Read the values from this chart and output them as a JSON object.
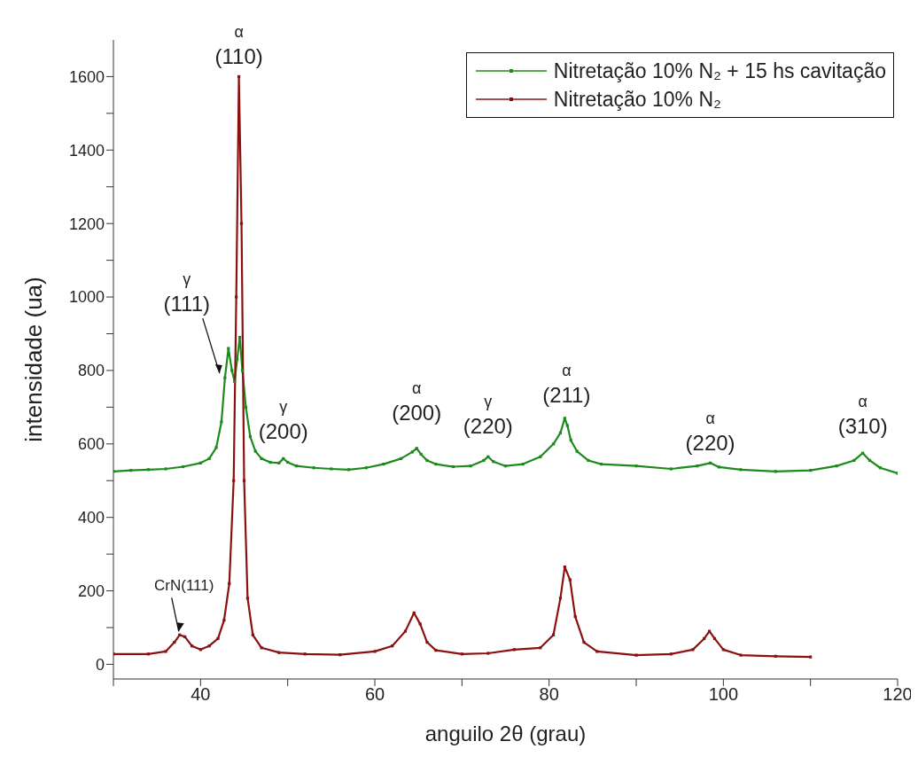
{
  "chart_data": {
    "type": "line",
    "xlabel": "anguilo 2θ (grau)",
    "ylabel": "intensidade (ua)",
    "xlim": [
      30,
      120
    ],
    "xticks": [
      {
        "value": 30,
        "label": null
      },
      40,
      {
        "value": 50,
        "label": null
      },
      60,
      {
        "value": 70,
        "label": null
      },
      80,
      {
        "value": 90,
        "label": null
      },
      100,
      {
        "value": 110,
        "label": null
      },
      120
    ],
    "ylim": [
      -40,
      1700
    ],
    "yticks": [
      0,
      {
        "value": 100,
        "label": null
      },
      200,
      {
        "value": 300,
        "label": null
      },
      400,
      {
        "value": 500,
        "label": null
      },
      600,
      {
        "value": 700,
        "label": null
      },
      800,
      {
        "value": 900,
        "label": null
      },
      1000,
      {
        "value": 1100,
        "label": null
      },
      1200,
      {
        "value": 1300,
        "label": null
      },
      1400,
      {
        "value": 1500,
        "label": null
      },
      1600
    ],
    "legend": "top right",
    "marker": "square",
    "line_style": "solid",
    "series": [
      {
        "name": "Nitretação 10% N₂ + 15 hs cavitação",
        "color": "#1e8a1e",
        "x": [
          30,
          32,
          34,
          36,
          38,
          40,
          41,
          41.8,
          42.4,
          42.8,
          43.2,
          43.6,
          43.9,
          44.2,
          44.5,
          44.8,
          45.2,
          45.7,
          46.3,
          47,
          48,
          49,
          49.5,
          50,
          51,
          53,
          55,
          57,
          59,
          61,
          63,
          64.3,
          64.8,
          65.3,
          66,
          67,
          69,
          71,
          72.5,
          73,
          73.6,
          75,
          77,
          79,
          80.5,
          81.3,
          81.8,
          82.1,
          82.5,
          83.2,
          84.5,
          86,
          90,
          94,
          97,
          98.5,
          99.5,
          102,
          106,
          110,
          113,
          115,
          116,
          116.8,
          118,
          120
        ],
        "values": [
          525,
          528,
          530,
          532,
          538,
          548,
          560,
          590,
          660,
          780,
          860,
          800,
          770,
          830,
          890,
          800,
          700,
          620,
          580,
          560,
          550,
          548,
          560,
          550,
          540,
          535,
          532,
          530,
          535,
          545,
          560,
          578,
          588,
          572,
          555,
          545,
          538,
          540,
          555,
          565,
          552,
          540,
          545,
          565,
          600,
          630,
          670,
          650,
          610,
          580,
          555,
          545,
          540,
          532,
          540,
          548,
          537,
          530,
          525,
          528,
          540,
          555,
          575,
          555,
          535,
          520
        ]
      },
      {
        "name": "Nitretação 10% N₂",
        "color": "#8b1010",
        "x": [
          30,
          34,
          36,
          37,
          37.6,
          38.2,
          39,
          40,
          41,
          42,
          42.7,
          43.3,
          43.8,
          44.1,
          44.4,
          44.7,
          45,
          45.4,
          46,
          47,
          49,
          52,
          56,
          60,
          62,
          63.5,
          64.5,
          65.2,
          66,
          67,
          70,
          73,
          76,
          79,
          80.5,
          81.3,
          81.8,
          82.4,
          83,
          84,
          85.5,
          90,
          94,
          96.5,
          97.8,
          98.4,
          99,
          100,
          102,
          106,
          110
        ],
        "values": [
          28,
          28,
          35,
          60,
          80,
          75,
          50,
          40,
          50,
          70,
          120,
          220,
          500,
          1000,
          1600,
          1200,
          500,
          180,
          80,
          45,
          32,
          28,
          26,
          35,
          50,
          90,
          140,
          110,
          60,
          38,
          28,
          30,
          40,
          45,
          80,
          180,
          265,
          230,
          130,
          60,
          35,
          25,
          28,
          40,
          70,
          90,
          70,
          40,
          25,
          22,
          20
        ]
      }
    ],
    "annotations": [
      {
        "text": "α\n(110)",
        "x": 44.4,
        "y": 1600
      },
      {
        "text": "γ\n(111)",
        "x": 43.2,
        "y": 860
      },
      {
        "text": "CrN(111)",
        "x": 37.6,
        "y": 80
      },
      {
        "text": "γ\n(200)",
        "x": 49.5,
        "y": 560
      },
      {
        "text": "α\n(200)",
        "x": 64.8,
        "y": 588
      },
      {
        "text": "γ\n(220)",
        "x": 73,
        "y": 565
      },
      {
        "text": "α\n(211)",
        "x": 82,
        "y": 670
      },
      {
        "text": "α\n(220)",
        "x": 98.5,
        "y": 548
      },
      {
        "text": "α\n(310)",
        "x": 116,
        "y": 575
      }
    ]
  }
}
